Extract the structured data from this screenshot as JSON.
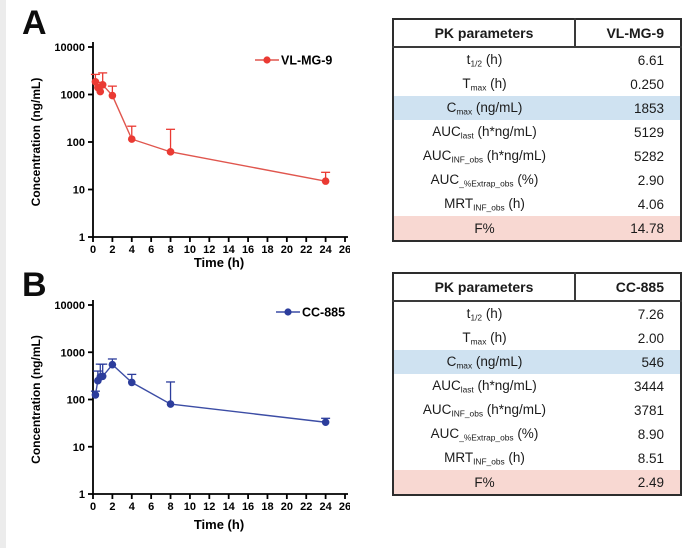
{
  "panel_labels": {
    "a": "A",
    "b": "B"
  },
  "colors": {
    "red_marker": "#ea3a33",
    "red_line": "#e0564e",
    "blue_marker": "#2c3d9c",
    "blue_line": "#3c4da5",
    "axis": "#000000",
    "table_border": "#2d2d2d",
    "highlight_blue": "#cfe2f1",
    "highlight_pink": "#f8d8d2"
  },
  "chart_data": [
    {
      "type": "line",
      "panel": "A",
      "legend": "VL-MG-9",
      "color": "#ea3a33",
      "line_color": "#e0564e",
      "xlabel": "Time (h)",
      "ylabel": "Concentration (ng/mL)",
      "xlim": [
        0,
        26
      ],
      "xtick_step": 2,
      "yscale": "log",
      "ylim": [
        1,
        10000
      ],
      "yticks": [
        1,
        10,
        100,
        1000,
        10000
      ],
      "x": [
        0.25,
        0.5,
        0.75,
        1,
        2,
        4,
        8,
        24
      ],
      "y": [
        1853,
        1400,
        1150,
        1600,
        950,
        115,
        62,
        15
      ],
      "y_err_top": [
        2650,
        1800,
        1400,
        2850,
        1500,
        215,
        185,
        23
      ],
      "grid": false,
      "legend_position": "top-right-inside"
    },
    {
      "type": "line",
      "panel": "B",
      "legend": "CC-885",
      "color": "#2c3d9c",
      "line_color": "#3c4da5",
      "xlabel": "Time (h)",
      "ylabel": "Concentration (ng/mL)",
      "xlim": [
        0,
        26
      ],
      "xtick_step": 2,
      "yscale": "log",
      "ylim": [
        1,
        10000
      ],
      "yticks": [
        1,
        10,
        100,
        1000,
        10000
      ],
      "x": [
        0.25,
        0.5,
        0.75,
        1,
        2,
        4,
        8,
        24
      ],
      "y": [
        125,
        250,
        300,
        310,
        546,
        230,
        80,
        33
      ],
      "y_err_top": [
        150,
        400,
        560,
        560,
        720,
        340,
        235,
        40
      ],
      "grid": false,
      "legend_position": "top-right-inside"
    }
  ],
  "tables": [
    {
      "panel": "A",
      "header": [
        "PK parameters",
        "VL-MG-9"
      ],
      "rows": [
        {
          "label": [
            [
              "t",
              0
            ],
            [
              "1/2",
              1
            ],
            [
              " (h)",
              0
            ]
          ],
          "value": "6.61",
          "highlight": ""
        },
        {
          "label": [
            [
              "T",
              0
            ],
            [
              "max",
              1
            ],
            [
              " (h)",
              0
            ]
          ],
          "value": "0.250",
          "highlight": ""
        },
        {
          "label": [
            [
              "C",
              0
            ],
            [
              "max",
              1
            ],
            [
              " (ng/mL)",
              0
            ]
          ],
          "value": "1853",
          "highlight": "blue"
        },
        {
          "label": [
            [
              "AUC",
              0
            ],
            [
              "last",
              1
            ],
            [
              " (h*ng/mL)",
              0
            ]
          ],
          "value": "5129",
          "highlight": ""
        },
        {
          "label": [
            [
              "AUC",
              0
            ],
            [
              "INF_obs",
              1
            ],
            [
              " (h*ng/mL)",
              0
            ]
          ],
          "value": "5282",
          "highlight": ""
        },
        {
          "label": [
            [
              "AUC",
              0
            ],
            [
              "_%Extrap_obs",
              1
            ],
            [
              " (%)",
              0
            ]
          ],
          "value": "2.90",
          "highlight": ""
        },
        {
          "label": [
            [
              "MRT",
              0
            ],
            [
              "INF_obs",
              1
            ],
            [
              " (h)",
              0
            ]
          ],
          "value": "4.06",
          "highlight": ""
        },
        {
          "label": [
            [
              "F%",
              0
            ]
          ],
          "value": "14.78",
          "highlight": "pink"
        }
      ]
    },
    {
      "panel": "B",
      "header": [
        "PK parameters",
        "CC-885"
      ],
      "rows": [
        {
          "label": [
            [
              "t",
              0
            ],
            [
              "1/2",
              1
            ],
            [
              " (h)",
              0
            ]
          ],
          "value": "7.26",
          "highlight": ""
        },
        {
          "label": [
            [
              "T",
              0
            ],
            [
              "max",
              1
            ],
            [
              " (h)",
              0
            ]
          ],
          "value": "2.00",
          "highlight": ""
        },
        {
          "label": [
            [
              "C",
              0
            ],
            [
              "max",
              1
            ],
            [
              " (ng/mL)",
              0
            ]
          ],
          "value": "546",
          "highlight": "blue"
        },
        {
          "label": [
            [
              "AUC",
              0
            ],
            [
              "last",
              1
            ],
            [
              " (h*ng/mL)",
              0
            ]
          ],
          "value": "3444",
          "highlight": ""
        },
        {
          "label": [
            [
              "AUC",
              0
            ],
            [
              "INF_obs",
              1
            ],
            [
              " (h*ng/mL)",
              0
            ]
          ],
          "value": "3781",
          "highlight": ""
        },
        {
          "label": [
            [
              "AUC",
              0
            ],
            [
              "_%Extrap_obs",
              1
            ],
            [
              " (%)",
              0
            ]
          ],
          "value": "8.90",
          "highlight": ""
        },
        {
          "label": [
            [
              "MRT",
              0
            ],
            [
              "INF_obs",
              1
            ],
            [
              " (h)",
              0
            ]
          ],
          "value": "8.51",
          "highlight": ""
        },
        {
          "label": [
            [
              "F%",
              0
            ]
          ],
          "value": "2.49",
          "highlight": "pink"
        }
      ]
    }
  ]
}
